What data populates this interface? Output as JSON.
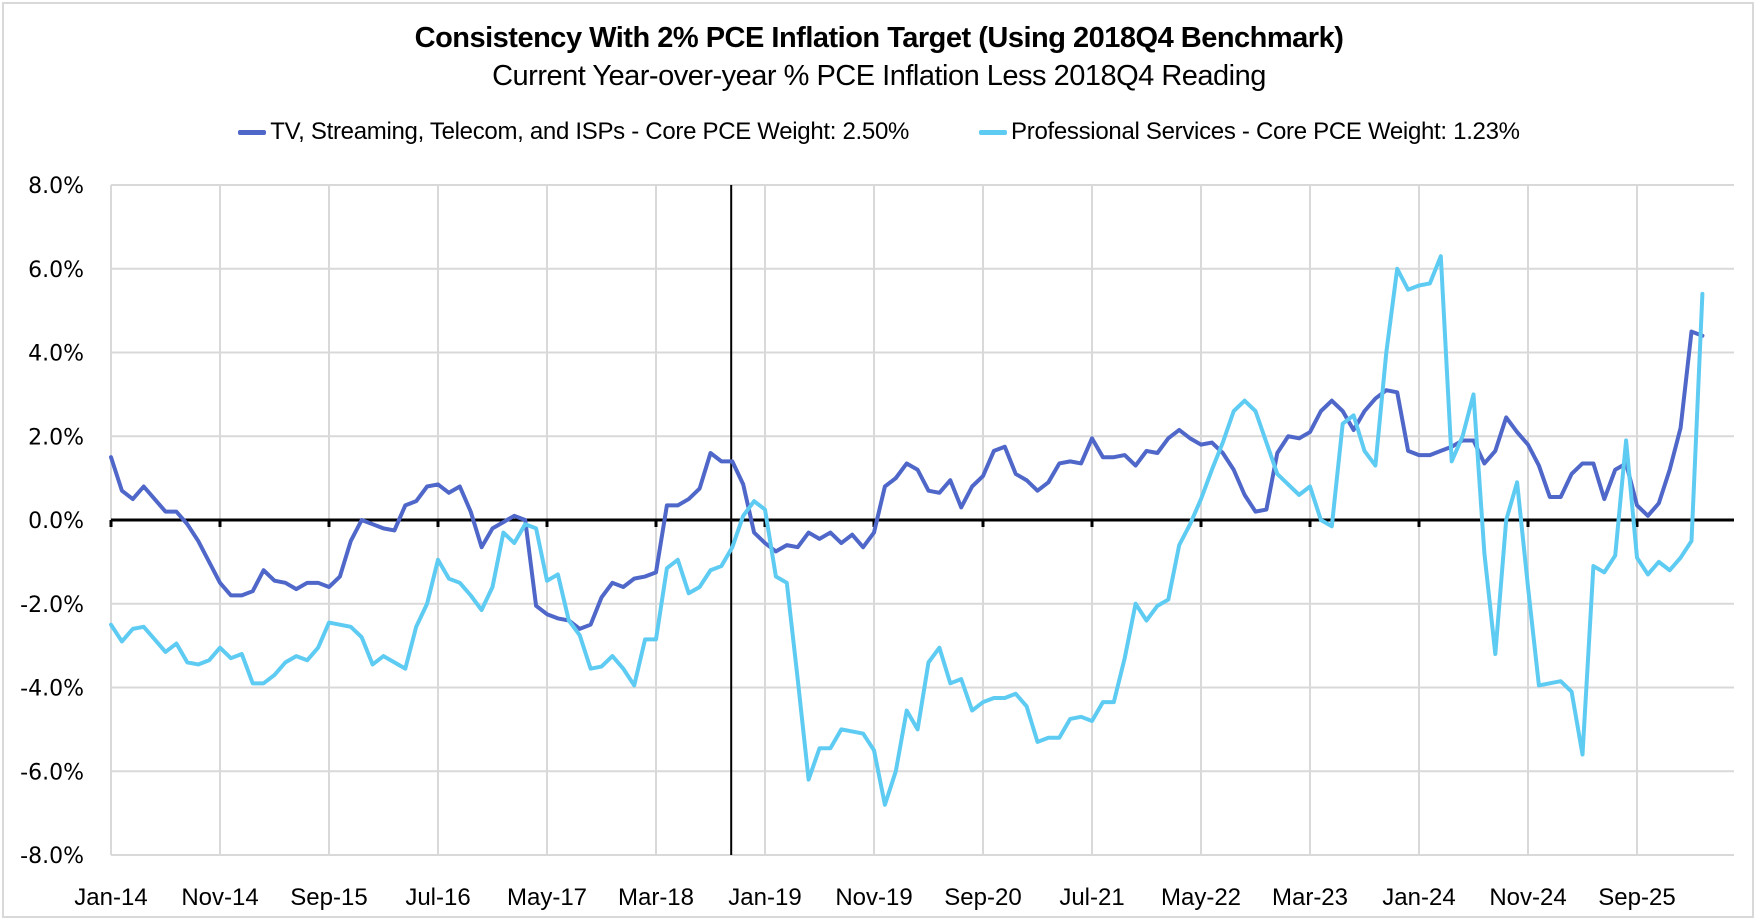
{
  "chart_data": {
    "type": "line",
    "title": "Consistency With 2% PCE Inflation Target (Using 2018Q4 Benchmark)",
    "subtitle": "Current Year-over-year % PCE Inflation Less 2018Q4 Reading",
    "xlabel": "",
    "ylabel": "",
    "ylim": [
      -8,
      8
    ],
    "yticks": [
      8,
      6,
      4,
      2,
      0,
      -2,
      -4,
      -6,
      -8
    ],
    "ytick_labels": [
      "8.0%",
      "6.0%",
      "4.0%",
      "2.0%",
      "0.0%",
      "-2.0%",
      "-4.0%",
      "-6.0%",
      "-8.0%"
    ],
    "x_start": "Jan-14",
    "x_unit": "month",
    "xtick_labels": [
      "Jan-14",
      "Nov-14",
      "Sep-15",
      "Jul-16",
      "May-17",
      "Mar-18",
      "Jan-19",
      "Nov-19",
      "Sep-20",
      "Jul-21",
      "May-22",
      "Mar-23",
      "Jan-24",
      "Nov-24",
      "Sep-25"
    ],
    "xtick_interval_months": 10,
    "x_max_month_index": 148,
    "grid": true,
    "legend_position": "top",
    "reference_line": {
      "label": "2018Q4 benchmark",
      "month_index": 58
    },
    "series": [
      {
        "name": "TV, Streaming, Telecom, and ISPs - Core PCE Weight: 2.50%",
        "color": "#4f67c9",
        "values": [
          1.5,
          0.7,
          0.5,
          0.8,
          0.5,
          0.2,
          0.2,
          -0.1,
          -0.5,
          -1.0,
          -1.5,
          -1.8,
          -1.8,
          -1.7,
          -1.2,
          -1.45,
          -1.5,
          -1.65,
          -1.5,
          -1.5,
          -1.6,
          -1.35,
          -0.5,
          0.0,
          -0.1,
          -0.2,
          -0.25,
          0.35,
          0.45,
          0.8,
          0.85,
          0.65,
          0.8,
          0.2,
          -0.65,
          -0.2,
          -0.05,
          0.1,
          0.0,
          -2.05,
          -2.25,
          -2.35,
          -2.4,
          -2.6,
          -2.5,
          -1.85,
          -1.5,
          -1.6,
          -1.4,
          -1.35,
          -1.25,
          0.35,
          0.35,
          0.5,
          0.75,
          1.6,
          1.4,
          1.4,
          0.85,
          -0.3,
          -0.55,
          -0.75,
          -0.6,
          -0.65,
          -0.3,
          -0.45,
          -0.3,
          -0.55,
          -0.35,
          -0.65,
          -0.3,
          0.8,
          1.0,
          1.35,
          1.2,
          0.7,
          0.65,
          0.95,
          0.3,
          0.8,
          1.05,
          1.65,
          1.75,
          1.1,
          0.95,
          0.7,
          0.9,
          1.35,
          1.4,
          1.35,
          1.95,
          1.5,
          1.5,
          1.55,
          1.3,
          1.65,
          1.6,
          1.95,
          2.15,
          1.95,
          1.8,
          1.85,
          1.6,
          1.2,
          0.6,
          0.2,
          0.25,
          1.6,
          2.0,
          1.95,
          2.1,
          2.6,
          2.85,
          2.6,
          2.15,
          2.6,
          2.9,
          3.1,
          3.05,
          1.65,
          1.55,
          1.55,
          1.65,
          1.75,
          1.9,
          1.9,
          1.35,
          1.65,
          2.45,
          2.1,
          1.8,
          1.3,
          0.55,
          0.55,
          1.1,
          1.35,
          1.35,
          0.5,
          1.2,
          1.35,
          0.35,
          0.1,
          0.4,
          1.2,
          2.2,
          4.5,
          4.4
        ]
      },
      {
        "name": "Professional Services - Core PCE Weight: 1.23%",
        "color": "#5ecbf2",
        "values": [
          -2.5,
          -2.9,
          -2.6,
          -2.55,
          -2.85,
          -3.15,
          -2.95,
          -3.4,
          -3.45,
          -3.35,
          -3.05,
          -3.3,
          -3.2,
          -3.9,
          -3.9,
          -3.7,
          -3.4,
          -3.25,
          -3.35,
          -3.05,
          -2.45,
          -2.5,
          -2.55,
          -2.8,
          -3.45,
          -3.25,
          -3.4,
          -3.55,
          -2.55,
          -2.0,
          -0.95,
          -1.4,
          -1.5,
          -1.8,
          -2.15,
          -1.6,
          -0.3,
          -0.55,
          -0.1,
          -0.2,
          -1.45,
          -1.3,
          -2.4,
          -2.75,
          -3.55,
          -3.5,
          -3.25,
          -3.55,
          -3.95,
          -2.85,
          -2.85,
          -1.15,
          -0.95,
          -1.75,
          -1.6,
          -1.2,
          -1.1,
          -0.65,
          0.1,
          0.45,
          0.25,
          -1.35,
          -1.5,
          -3.8,
          -6.2,
          -5.45,
          -5.45,
          -5.0,
          -5.05,
          -5.1,
          -5.5,
          -6.8,
          -6.0,
          -4.55,
          -5.0,
          -3.4,
          -3.05,
          -3.9,
          -3.8,
          -4.55,
          -4.35,
          -4.25,
          -4.25,
          -4.15,
          -4.45,
          -5.3,
          -5.2,
          -5.2,
          -4.75,
          -4.7,
          -4.8,
          -4.35,
          -4.35,
          -3.3,
          -2.0,
          -2.4,
          -2.05,
          -1.9,
          -0.6,
          -0.1,
          0.5,
          1.2,
          1.85,
          2.6,
          2.85,
          2.6,
          1.85,
          1.1,
          0.85,
          0.6,
          0.8,
          0.0,
          -0.15,
          2.3,
          2.5,
          1.65,
          1.3,
          4.0,
          6.0,
          5.5,
          5.6,
          5.65,
          6.3,
          1.4,
          2.0,
          3.0,
          -0.8,
          -3.2,
          0.0,
          0.9,
          -1.6,
          -3.95,
          -3.9,
          -3.85,
          -4.1,
          -5.6,
          -1.1,
          -1.25,
          -0.85,
          1.9,
          -0.9,
          -1.3,
          -1.0,
          -1.2,
          -0.9,
          -0.5,
          5.4
        ]
      }
    ]
  },
  "legend": {
    "items": [
      {
        "label": "TV, Streaming, Telecom, and ISPs - Core PCE Weight: 2.50%",
        "color": "#4f67c9"
      },
      {
        "label": "Professional Services - Core PCE Weight: 1.23%",
        "color": "#5ecbf2"
      }
    ]
  }
}
